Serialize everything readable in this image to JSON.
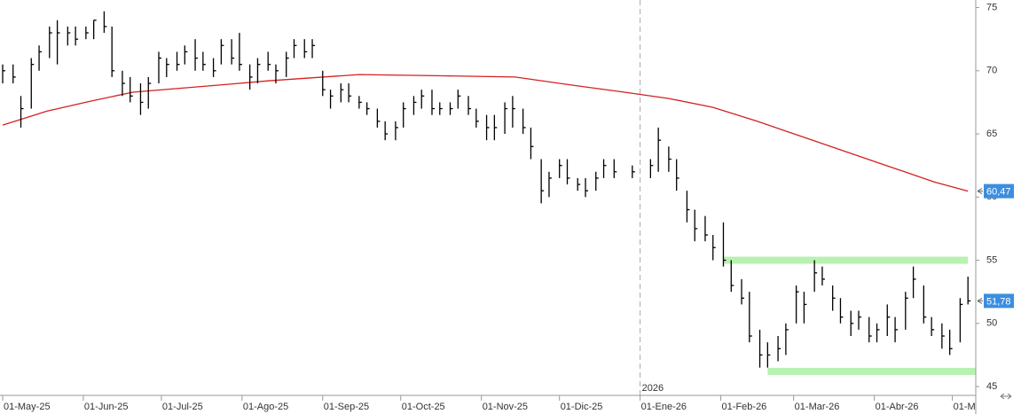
{
  "chart_data": {
    "type": "ohlc",
    "color": "#000000",
    "x": [
      "2025-05-01",
      "2025-05-05",
      "2025-05-08",
      "2025-05-12",
      "2025-05-15",
      "2025-05-19",
      "2025-05-22",
      "2025-05-26",
      "2025-05-29",
      "2025-06-02",
      "2025-06-05",
      "2025-06-09",
      "2025-06-12",
      "2025-06-16",
      "2025-06-19",
      "2025-06-23",
      "2025-06-26",
      "2025-06-30",
      "2025-07-03",
      "2025-07-07",
      "2025-07-10",
      "2025-07-14",
      "2025-07-17",
      "2025-07-21",
      "2025-07-24",
      "2025-07-28",
      "2025-07-31",
      "2025-08-04",
      "2025-08-07",
      "2025-08-11",
      "2025-08-14",
      "2025-08-18",
      "2025-08-21",
      "2025-08-25",
      "2025-08-28",
      "2025-09-01",
      "2025-09-04",
      "2025-09-08",
      "2025-09-11",
      "2025-09-15",
      "2025-09-18",
      "2025-09-22",
      "2025-09-25",
      "2025-09-29",
      "2025-10-02",
      "2025-10-06",
      "2025-10-09",
      "2025-10-13",
      "2025-10-16",
      "2025-10-20",
      "2025-10-23",
      "2025-10-27",
      "2025-10-30",
      "2025-11-03",
      "2025-11-06",
      "2025-11-10",
      "2025-11-13",
      "2025-11-17",
      "2025-11-20",
      "2025-11-24",
      "2025-11-27",
      "2025-12-01",
      "2025-12-04",
      "2025-12-08",
      "2025-12-11",
      "2025-12-15",
      "2025-12-18",
      "2025-12-22",
      "2025-12-29",
      "2026-01-05",
      "2026-01-08",
      "2026-01-12",
      "2026-01-15",
      "2026-01-19",
      "2026-01-22",
      "2026-01-26",
      "2026-01-29",
      "2026-02-02",
      "2026-02-05",
      "2026-02-09",
      "2026-02-12",
      "2026-02-16",
      "2026-02-19",
      "2026-02-23",
      "2026-02-26",
      "2026-03-02",
      "2026-03-05",
      "2026-03-09",
      "2026-03-12",
      "2026-03-16",
      "2026-03-19",
      "2026-03-23",
      "2026-03-26",
      "2026-03-30",
      "2026-04-02",
      "2026-04-06",
      "2026-04-09",
      "2026-04-13",
      "2026-04-16",
      "2026-04-20",
      "2026-04-23",
      "2026-04-27",
      "2026-04-30",
      "2026-05-04",
      "2026-05-07"
    ],
    "high": [
      70.5,
      70.5,
      68,
      71,
      72,
      73.5,
      74,
      73.5,
      73.5,
      73.5,
      74,
      74.7,
      73.5,
      70,
      69.5,
      69,
      69.5,
      71.5,
      71,
      71.5,
      72,
      72.5,
      71.5,
      71,
      72.5,
      72.5,
      73,
      70.5,
      71,
      71.5,
      70.5,
      71.5,
      72.5,
      72.5,
      72.5,
      70,
      68.5,
      69,
      69,
      68,
      67.5,
      67,
      66,
      66,
      67.5,
      68,
      68.5,
      68.5,
      67.5,
      67.5,
      68.5,
      68,
      67,
      66.5,
      66.5,
      67.5,
      68,
      67,
      65.5,
      63,
      62,
      63,
      63,
      61.5,
      61.5,
      62,
      63,
      63,
      62.5,
      63,
      65.5,
      64,
      63,
      60.5,
      59,
      58.5,
      57,
      58,
      55,
      53.5,
      52.5,
      49.5,
      48.5,
      49,
      50,
      53,
      52.5,
      55,
      54.5,
      53,
      52,
      51,
      51,
      50.5,
      50,
      51.5,
      50.5,
      52.5,
      54.5,
      53,
      50.5,
      50,
      49.5,
      52,
      53.7
    ],
    "low": [
      69,
      69,
      65.5,
      67,
      70,
      71,
      70.5,
      72,
      72,
      72.5,
      72.5,
      73,
      69.5,
      68,
      67.5,
      66.5,
      67,
      69,
      69.5,
      70,
      70.5,
      70,
      70,
      69.5,
      70.5,
      70.5,
      70,
      68.5,
      69,
      70,
      69,
      69.5,
      71,
      71,
      71,
      68,
      67,
      67.5,
      67.5,
      67,
      66.5,
      65.5,
      64.5,
      64.5,
      65.5,
      66.5,
      67,
      66.5,
      66.5,
      66.5,
      67,
      66.5,
      65.5,
      64.5,
      64.5,
      65,
      65.5,
      65,
      63,
      59.5,
      60,
      61.5,
      61,
      60.5,
      60,
      60.5,
      61.5,
      61.5,
      61.5,
      61.5,
      62,
      62,
      60.5,
      58,
      56.5,
      56.5,
      55,
      54.5,
      52.5,
      51.5,
      48.5,
      46.5,
      46.5,
      47,
      47.5,
      50,
      50,
      52.5,
      53,
      51,
      50,
      49,
      49.5,
      48.5,
      48.5,
      49,
      48.5,
      49.5,
      52,
      50,
      49,
      48,
      47.5,
      48.5,
      51.5
    ],
    "close": [
      70,
      69.5,
      67,
      70.5,
      71.5,
      73,
      73,
      73,
      72.5,
      73,
      74,
      73.5,
      70,
      69,
      68,
      67.5,
      69,
      71,
      70.5,
      70.5,
      71.5,
      71,
      70.5,
      70,
      72,
      71,
      70.5,
      69.5,
      70.5,
      70.5,
      70,
      71,
      72,
      71.5,
      72,
      68.5,
      68,
      68.5,
      68,
      67.5,
      67,
      66,
      65,
      65.5,
      67,
      67.5,
      68,
      67,
      67,
      67,
      68,
      67,
      66,
      65.5,
      65.5,
      67,
      67,
      65.5,
      64,
      60.5,
      61.5,
      62.5,
      61.5,
      61,
      60.5,
      61.5,
      62.5,
      62,
      62,
      62.5,
      64.5,
      63,
      61.5,
      59,
      57.5,
      57,
      56,
      55,
      53,
      52,
      49,
      47.5,
      47.5,
      48,
      49.5,
      52.5,
      51.5,
      54,
      53.5,
      52,
      50.5,
      50,
      50.5,
      49,
      49.5,
      50.5,
      49.5,
      52,
      53.5,
      50.5,
      49.5,
      49,
      48,
      51.5,
      51.78
    ],
    "moving_average": {
      "color": "#d42020",
      "x": [
        "2025-05-01",
        "2025-05-18",
        "2025-06-04",
        "2025-06-20",
        "2025-07-25",
        "2025-08-11",
        "2025-09-15",
        "2025-10-17",
        "2025-11-14",
        "2025-12-08",
        "2025-12-26",
        "2026-01-12",
        "2026-01-29",
        "2026-02-15",
        "2026-03-04",
        "2026-03-21",
        "2026-04-07",
        "2026-04-24",
        "2026-05-07"
      ],
      "values": [
        65.7,
        66.8,
        67.6,
        68.3,
        68.9,
        69.2,
        69.7,
        69.6,
        69.5,
        68.8,
        68.3,
        67.8,
        67.1,
        66.0,
        64.8,
        63.6,
        62.4,
        61.2,
        60.47
      ]
    },
    "levels": {
      "color": "#b8f2b0",
      "items": [
        {
          "value": 55,
          "from": "2026-02-02",
          "to": "2026-05-07"
        },
        {
          "value": 46.2,
          "from": "2026-02-19",
          "to": "2026-05-10"
        }
      ]
    },
    "markers": {
      "color": "#3b8ee0",
      "items": [
        {
          "value": 60.47,
          "label": "60,47"
        },
        {
          "value": 51.78,
          "label": "51,78"
        }
      ]
    },
    "year_marker": {
      "value": "2026-01-01",
      "label": "2026"
    },
    "xlim": [
      "2025-05-01",
      "2026-05-10"
    ],
    "xticks": [
      {
        "value": "2025-05-01",
        "label": "01-May-25"
      },
      {
        "value": "2025-06-01",
        "label": "01-Jun-25"
      },
      {
        "value": "2025-07-01",
        "label": "01-Jul-25"
      },
      {
        "value": "2025-08-01",
        "label": "01-Ago-25"
      },
      {
        "value": "2025-09-01",
        "label": "01-Sep-25"
      },
      {
        "value": "2025-10-01",
        "label": "01-Oct-25"
      },
      {
        "value": "2025-11-01",
        "label": "01-Nov-25"
      },
      {
        "value": "2025-12-01",
        "label": "01-Dic-25"
      },
      {
        "value": "2026-01-01",
        "label": "01-Ene-26"
      },
      {
        "value": "2026-02-01",
        "label": "01-Feb-26"
      },
      {
        "value": "2026-03-01",
        "label": "01-Mar-26"
      },
      {
        "value": "2026-04-01",
        "label": "01-Abr-26"
      },
      {
        "value": "2026-05-01",
        "label": "01-M"
      }
    ],
    "ylim": [
      44.3,
      75.6
    ],
    "yticks": [
      45,
      50,
      55,
      60,
      65,
      70,
      75
    ]
  }
}
